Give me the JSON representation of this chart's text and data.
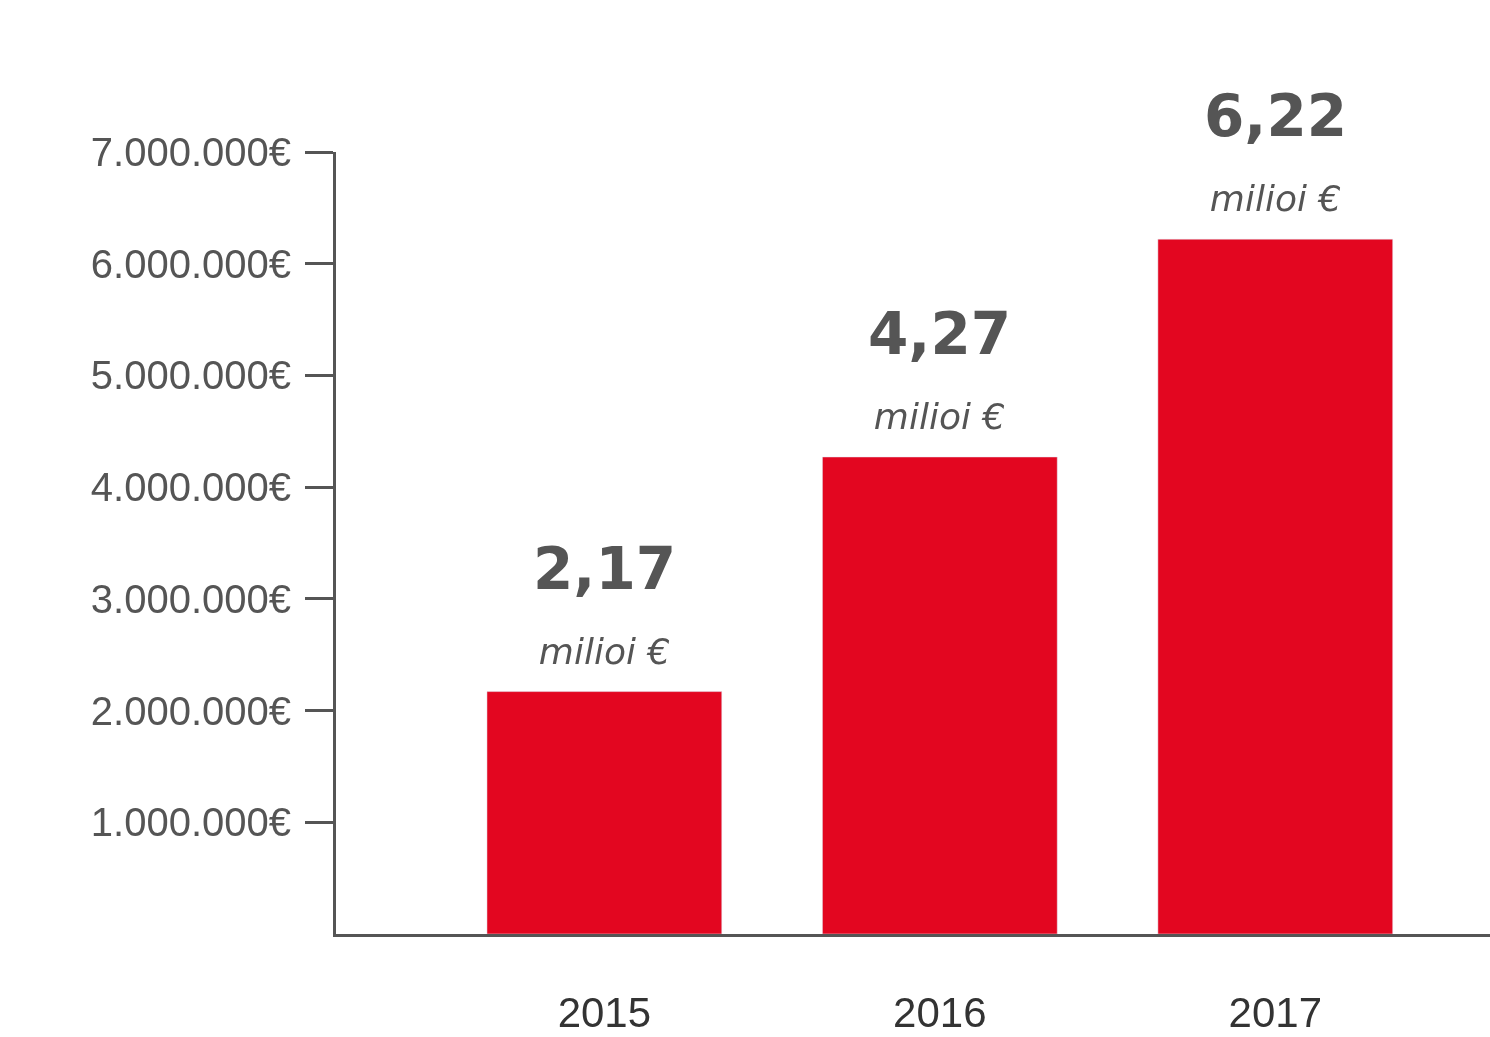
{
  "chart_data": {
    "type": "bar",
    "categories": [
      "2015",
      "2016",
      "2017"
    ],
    "values": [
      2170000,
      4270000,
      6220000
    ],
    "color": "#e30620",
    "annotations": [
      "2,17\nmilioi €",
      "4,27\nmilioi €",
      "6,22\nmilioi €"
    ],
    "ylim": [
      0,
      7000000
    ],
    "yticks": [
      {
        "value": 1000000,
        "label": "1.000.000€"
      },
      {
        "value": 2000000,
        "label": "2.000.000€"
      },
      {
        "value": 3000000,
        "label": "3.000.000€"
      },
      {
        "value": 4000000,
        "label": "4.000.000€"
      },
      {
        "value": 5000000,
        "label": "5.000.000€"
      },
      {
        "value": 6000000,
        "label": "6.000.000€"
      },
      {
        "value": 7000000,
        "label": "7.000.000€"
      }
    ],
    "legend": false
  }
}
